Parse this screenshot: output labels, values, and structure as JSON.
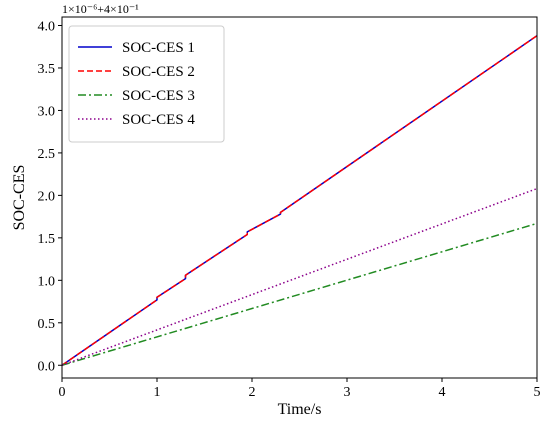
{
  "chart_data": {
    "type": "line",
    "xlabel": "Time/s",
    "ylabel": "SOC-CES",
    "offset_text": "1×10⁻⁶+4×10⁻¹",
    "xlim": [
      0,
      5
    ],
    "ylim": [
      -0.15,
      4.1
    ],
    "xticks": [
      0,
      1,
      2,
      3,
      4,
      5
    ],
    "xtick_labels": [
      "0",
      "1",
      "2",
      "3",
      "4",
      "5"
    ],
    "yticks": [
      0.0,
      0.5,
      1.0,
      1.5,
      2.0,
      2.5,
      3.0,
      3.5,
      4.0
    ],
    "ytick_labels": [
      "0.0",
      "0.5",
      "1.0",
      "1.5",
      "2.0",
      "2.5",
      "3.0",
      "3.5",
      "4.0"
    ],
    "grid": false,
    "legend_position": "top-left",
    "series": [
      {
        "name": "SOC-CES 1",
        "color": "#0000cc",
        "style": "solid",
        "x": [
          0,
          1.0,
          1.0,
          1.3,
          1.3,
          1.95,
          1.95,
          2.3,
          2.3,
          5.0
        ],
        "y": [
          0.0,
          0.77,
          0.8,
          1.02,
          1.06,
          1.54,
          1.57,
          1.78,
          1.8,
          3.88
        ]
      },
      {
        "name": "SOC-CES 2",
        "color": "#ff0000",
        "style": "dashed",
        "x": [
          0,
          1.0,
          1.0,
          1.3,
          1.3,
          1.95,
          1.95,
          2.3,
          2.3,
          5.0
        ],
        "y": [
          0.0,
          0.77,
          0.8,
          1.02,
          1.06,
          1.54,
          1.57,
          1.78,
          1.8,
          3.88
        ]
      },
      {
        "name": "SOC-CES 3",
        "color": "#228b22",
        "style": "dashdot",
        "x": [
          0,
          5.0
        ],
        "y": [
          0.0,
          1.67
        ]
      },
      {
        "name": "SOC-CES 4",
        "color": "#8b008b",
        "style": "dotted",
        "x": [
          0,
          5.0
        ],
        "y": [
          0.0,
          2.08
        ]
      }
    ]
  }
}
